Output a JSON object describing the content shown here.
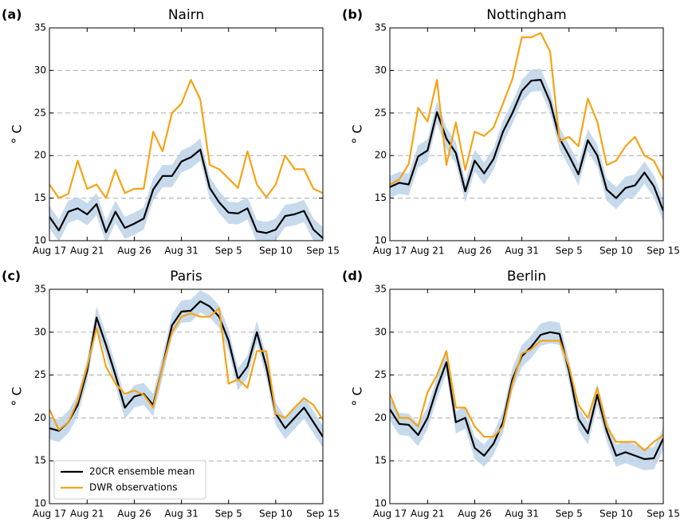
{
  "chart_data": [
    {
      "type": "line",
      "panel_label": "(a)",
      "title": "Nairn",
      "y_label": "° C",
      "x": [
        "Aug 17",
        "Aug 18",
        "Aug 19",
        "Aug 20",
        "Aug 21",
        "Aug 22",
        "Aug 23",
        "Aug 24",
        "Aug 25",
        "Aug 26",
        "Aug 27",
        "Aug 28",
        "Aug 29",
        "Aug 30",
        "Aug 31",
        "Sep 1",
        "Sep 2",
        "Sep 3",
        "Sep 4",
        "Sep 5",
        "Sep 6",
        "Sep 7",
        "Sep 8",
        "Sep 9",
        "Sep 10",
        "Sep 11",
        "Sep 12",
        "Sep 13",
        "Sep 14",
        "Sep 15"
      ],
      "xticks": [
        "Aug 17",
        "Aug 21",
        "Aug 26",
        "Aug 31",
        "Sep 5",
        "Sep 10",
        "Sep 15"
      ],
      "ylim": [
        10,
        35
      ],
      "yticks": [
        10,
        15,
        20,
        25,
        30,
        35
      ],
      "grid": true,
      "band": {
        "color": "#b9d1e7",
        "lower": [
          11.5,
          9.9,
          12.1,
          12.5,
          11.8,
          13.0,
          9.7,
          12.1,
          10.2,
          10.7,
          11.3,
          14.7,
          16.3,
          16.3,
          18.0,
          18.5,
          19.4,
          14.9,
          13.2,
          12.0,
          11.9,
          12.5,
          9.8,
          9.6,
          10.0,
          11.6,
          11.8,
          12.2,
          10.0,
          9.0
        ],
        "upper": [
          14.1,
          12.5,
          14.7,
          15.1,
          14.4,
          15.6,
          12.3,
          14.7,
          12.8,
          13.3,
          13.9,
          17.3,
          18.9,
          18.9,
          20.6,
          21.1,
          22.0,
          17.5,
          15.8,
          14.6,
          14.5,
          15.1,
          12.4,
          12.2,
          12.6,
          14.2,
          14.4,
          14.8,
          12.6,
          11.6
        ]
      },
      "series": [
        {
          "color": "#000000",
          "values": [
            12.8,
            11.2,
            13.4,
            13.8,
            13.1,
            14.3,
            11.0,
            13.4,
            11.5,
            12.0,
            12.6,
            16.0,
            17.6,
            17.6,
            19.3,
            19.8,
            20.7,
            16.2,
            14.5,
            13.3,
            13.2,
            13.8,
            11.1,
            10.9,
            11.3,
            12.9,
            13.1,
            13.5,
            11.3,
            10.3
          ]
        },
        {
          "color": "#f5a316",
          "values": [
            16.6,
            15.0,
            15.5,
            19.4,
            16.1,
            16.6,
            15.0,
            18.3,
            15.6,
            16.1,
            16.1,
            22.8,
            20.5,
            25.0,
            26.1,
            28.9,
            26.6,
            18.9,
            18.4,
            17.3,
            16.2,
            20.5,
            16.6,
            15.1,
            16.6,
            20.0,
            18.4,
            18.4,
            16.1,
            15.6
          ]
        }
      ]
    },
    {
      "type": "line",
      "panel_label": "(b)",
      "title": "Nottingham",
      "y_label": "° C",
      "x": [
        "Aug 17",
        "Aug 18",
        "Aug 19",
        "Aug 20",
        "Aug 21",
        "Aug 22",
        "Aug 23",
        "Aug 24",
        "Aug 25",
        "Aug 26",
        "Aug 27",
        "Aug 28",
        "Aug 29",
        "Aug 30",
        "Aug 31",
        "Sep 1",
        "Sep 2",
        "Sep 3",
        "Sep 4",
        "Sep 5",
        "Sep 6",
        "Sep 7",
        "Sep 8",
        "Sep 9",
        "Sep 10",
        "Sep 11",
        "Sep 12",
        "Sep 13",
        "Sep 14",
        "Sep 15"
      ],
      "xticks": [
        "Aug 17",
        "Aug 21",
        "Aug 26",
        "Aug 31",
        "Sep 5",
        "Sep 10",
        "Sep 15"
      ],
      "ylim": [
        10,
        35
      ],
      "yticks": [
        10,
        15,
        20,
        25,
        30,
        35
      ],
      "grid": true,
      "band": {
        "color": "#b9d1e7",
        "lower": [
          15.0,
          15.5,
          15.3,
          18.6,
          19.3,
          23.8,
          20.7,
          19.0,
          14.5,
          18.1,
          16.6,
          18.3,
          21.5,
          23.7,
          26.3,
          27.5,
          27.6,
          25.0,
          20.7,
          18.7,
          16.5,
          20.5,
          18.7,
          14.7,
          13.7,
          14.9,
          15.2,
          16.7,
          15.1,
          12.2
        ],
        "upper": [
          17.6,
          18.1,
          17.9,
          21.2,
          21.9,
          26.4,
          23.3,
          21.6,
          17.1,
          20.7,
          19.2,
          20.9,
          24.1,
          26.3,
          28.9,
          30.1,
          30.2,
          27.6,
          23.3,
          21.3,
          19.1,
          23.1,
          21.3,
          17.3,
          16.3,
          17.5,
          17.8,
          19.3,
          17.7,
          14.8
        ]
      },
      "series": [
        {
          "color": "#000000",
          "values": [
            16.3,
            16.8,
            16.6,
            19.9,
            20.6,
            25.1,
            22.0,
            20.3,
            15.8,
            19.4,
            17.9,
            19.6,
            22.8,
            25.0,
            27.6,
            28.8,
            28.9,
            26.3,
            22.0,
            20.0,
            17.8,
            21.8,
            20.0,
            16.0,
            15.0,
            16.2,
            16.5,
            18.0,
            16.4,
            13.5
          ]
        },
        {
          "color": "#f5a316",
          "values": [
            16.6,
            17.2,
            19.0,
            25.6,
            24.0,
            28.9,
            18.9,
            23.9,
            18.3,
            22.8,
            22.3,
            23.3,
            26.1,
            29.0,
            33.9,
            33.9,
            34.4,
            32.2,
            21.7,
            22.2,
            21.1,
            26.7,
            24.0,
            18.9,
            19.4,
            21.1,
            22.2,
            20.0,
            19.4,
            17.2
          ]
        }
      ]
    },
    {
      "type": "line",
      "panel_label": "(c)",
      "title": "Paris",
      "y_label": "° C",
      "legend": "lower left",
      "x": [
        "Aug 17",
        "Aug 18",
        "Aug 19",
        "Aug 20",
        "Aug 21",
        "Aug 22",
        "Aug 23",
        "Aug 24",
        "Aug 25",
        "Aug 26",
        "Aug 27",
        "Aug 28",
        "Aug 29",
        "Aug 30",
        "Aug 31",
        "Sep 1",
        "Sep 2",
        "Sep 3",
        "Sep 4",
        "Sep 5",
        "Sep 6",
        "Sep 7",
        "Sep 8",
        "Sep 9",
        "Sep 10",
        "Sep 11",
        "Sep 12",
        "Sep 13",
        "Sep 14",
        "Sep 15"
      ],
      "xticks": [
        "Aug 17",
        "Aug 21",
        "Aug 26",
        "Aug 31",
        "Sep 5",
        "Sep 10",
        "Sep 15"
      ],
      "ylim": [
        10,
        35
      ],
      "yticks": [
        10,
        15,
        20,
        25,
        30,
        35
      ],
      "grid": true,
      "band": {
        "color": "#b9d1e7",
        "lower": [
          17.5,
          17.2,
          18.2,
          20.2,
          24.2,
          30.4,
          27.2,
          23.7,
          19.9,
          21.2,
          21.5,
          20.2,
          24.7,
          29.5,
          31.1,
          31.2,
          32.3,
          31.7,
          30.5,
          27.7,
          23.2,
          24.7,
          28.7,
          24.7,
          19.2,
          17.5,
          18.7,
          19.9,
          18.2,
          16.5
        ],
        "upper": [
          20.1,
          19.8,
          20.8,
          22.8,
          26.8,
          33.0,
          29.8,
          26.3,
          22.5,
          23.8,
          24.1,
          22.8,
          27.3,
          32.1,
          33.7,
          33.8,
          34.9,
          34.3,
          33.1,
          30.3,
          25.8,
          27.3,
          31.3,
          27.3,
          21.8,
          20.1,
          21.3,
          22.5,
          20.8,
          19.1
        ]
      },
      "series": [
        {
          "name": "20CR ensemble mean",
          "color": "#000000",
          "values": [
            18.8,
            18.5,
            19.5,
            21.5,
            25.5,
            31.7,
            28.5,
            25.0,
            21.2,
            22.5,
            22.8,
            21.5,
            26.0,
            30.8,
            32.4,
            32.5,
            33.6,
            33.0,
            31.8,
            29.0,
            24.5,
            26.0,
            30.0,
            26.0,
            20.5,
            18.8,
            20.0,
            21.2,
            19.5,
            17.8
          ]
        },
        {
          "name": "DWR observations",
          "color": "#f5a316",
          "values": [
            21.0,
            18.6,
            19.5,
            22.0,
            26.0,
            30.5,
            26.0,
            24.0,
            22.8,
            23.2,
            22.7,
            21.2,
            26.0,
            30.0,
            31.8,
            32.2,
            31.8,
            31.8,
            32.8,
            24.0,
            24.5,
            23.5,
            27.8,
            27.8,
            20.5,
            20.0,
            21.2,
            22.3,
            21.5,
            19.8
          ]
        }
      ]
    },
    {
      "type": "line",
      "panel_label": "(d)",
      "title": "Berlin",
      "y_label": "° C",
      "x": [
        "Aug 17",
        "Aug 18",
        "Aug 19",
        "Aug 20",
        "Aug 21",
        "Aug 22",
        "Aug 23",
        "Aug 24",
        "Aug 25",
        "Aug 26",
        "Aug 27",
        "Aug 28",
        "Aug 29",
        "Aug 30",
        "Aug 31",
        "Sep 1",
        "Sep 2",
        "Sep 3",
        "Sep 4",
        "Sep 5",
        "Sep 6",
        "Sep 7",
        "Sep 8",
        "Sep 9",
        "Sep 10",
        "Sep 11",
        "Sep 12",
        "Sep 13",
        "Sep 14",
        "Sep 15"
      ],
      "xticks": [
        "Aug 17",
        "Aug 21",
        "Aug 26",
        "Aug 31",
        "Sep 5",
        "Sep 10",
        "Sep 15"
      ],
      "ylim": [
        10,
        35
      ],
      "yticks": [
        10,
        15,
        20,
        25,
        30,
        35
      ],
      "grid": true,
      "band": {
        "color": "#b9d1e7",
        "lower": [
          19.7,
          18.0,
          17.9,
          16.7,
          18.7,
          22.2,
          25.2,
          18.2,
          18.7,
          15.2,
          14.3,
          15.7,
          18.2,
          23.2,
          25.9,
          27.0,
          28.4,
          28.7,
          28.5,
          24.2,
          18.6,
          16.9,
          21.4,
          17.2,
          14.3,
          14.7,
          14.3,
          13.9,
          14.0,
          16.3
        ],
        "upper": [
          22.3,
          20.6,
          20.5,
          19.3,
          21.3,
          24.8,
          27.8,
          20.8,
          21.3,
          17.8,
          16.9,
          18.3,
          20.8,
          25.8,
          28.5,
          29.6,
          31.0,
          31.3,
          31.1,
          26.8,
          21.2,
          19.5,
          24.0,
          19.8,
          16.9,
          17.3,
          16.9,
          16.5,
          16.6,
          18.9
        ]
      },
      "series": [
        {
          "color": "#000000",
          "values": [
            21.0,
            19.3,
            19.2,
            18.0,
            20.0,
            23.5,
            26.5,
            19.5,
            20.0,
            16.5,
            15.6,
            17.0,
            19.5,
            24.5,
            27.2,
            28.3,
            29.7,
            30.0,
            29.8,
            25.5,
            19.9,
            18.2,
            22.7,
            18.5,
            15.6,
            16.0,
            15.6,
            15.2,
            15.3,
            17.6
          ]
        },
        {
          "color": "#f5a316",
          "values": [
            22.8,
            20.0,
            20.0,
            19.0,
            23.0,
            25.0,
            27.8,
            21.2,
            21.2,
            19.0,
            17.8,
            17.8,
            19.0,
            24.0,
            27.5,
            28.0,
            29.0,
            29.0,
            29.0,
            26.0,
            21.5,
            20.0,
            23.5,
            19.0,
            17.2,
            17.2,
            17.2,
            16.2,
            17.2,
            18.0
          ]
        }
      ]
    }
  ]
}
